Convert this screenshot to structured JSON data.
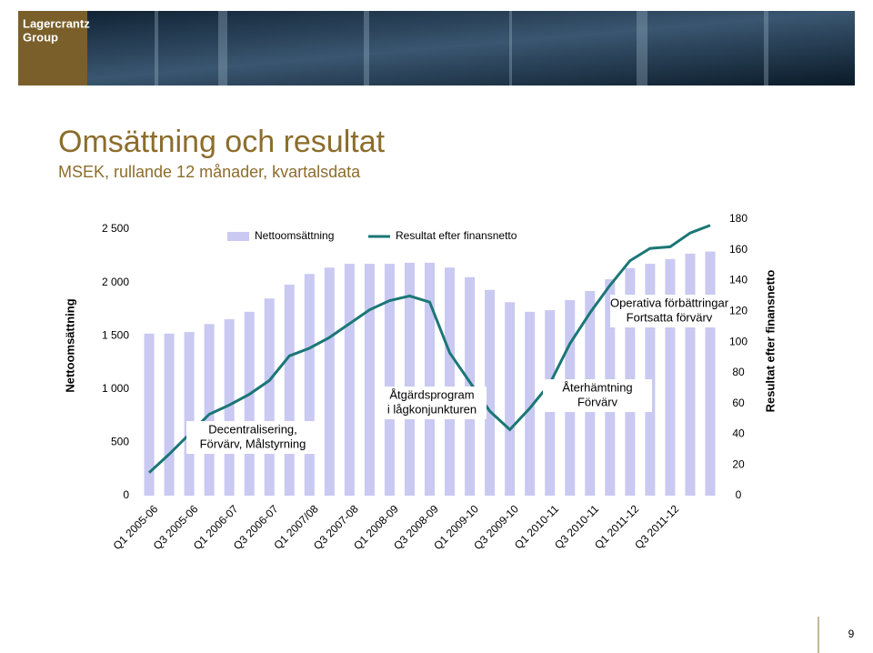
{
  "header": {
    "logo": [
      "Lagercrantz",
      "Group"
    ]
  },
  "page_number": "9",
  "chart_data": {
    "type": "bar-line",
    "title": "Omsättning och resultat",
    "subtitle": "MSEK, rullande 12 månader, kvartalsdata",
    "y_label": "Nettoomsättning",
    "y2_label": "Resultat efter finansnetto",
    "categories": [
      "Q1 2005-06",
      null,
      "Q3 2005-06",
      null,
      "Q1 2006-07",
      null,
      "Q3 2006-07",
      null,
      "Q1 2007/08",
      null,
      "Q3 2007-08",
      null,
      "Q1 2008-09",
      null,
      "Q3 2008-09",
      null,
      "Q1 2009-10",
      null,
      "Q3 2009-10",
      null,
      "Q1 2010-11",
      null,
      "Q3 2010-11",
      null,
      "Q1 2011-12",
      null,
      "Q3 2011-12",
      null,
      null
    ],
    "series": [
      {
        "name": "Nettoomsättning",
        "type": "bar",
        "color": "#c9c9f2",
        "values": [
          1520,
          1520,
          1535,
          1610,
          1655,
          1725,
          1850,
          1980,
          2080,
          2140,
          2175,
          2175,
          2175,
          2185,
          2185,
          2140,
          2050,
          1930,
          1815,
          1725,
          1740,
          1835,
          1920,
          2030,
          2135,
          2175,
          2220,
          2270,
          2290
        ]
      },
      {
        "name": "Resultat efter finansnetto",
        "type": "line",
        "axis": "y2",
        "color": "#1b7775",
        "values": [
          15,
          27,
          40,
          53,
          59,
          66,
          75,
          91,
          96,
          103,
          112,
          121,
          127,
          130,
          126,
          93,
          74,
          55,
          43,
          57,
          73,
          99,
          119,
          137,
          153,
          161,
          162,
          171,
          176
        ]
      }
    ],
    "ylim": [
      0,
      2500
    ],
    "yticks": [
      0,
      500,
      {
        "value": 1000,
        "label": "1 000"
      },
      {
        "value": 1500,
        "label": "1 500"
      },
      {
        "value": 2000,
        "label": "2 000"
      },
      {
        "value": 2500,
        "label": "2 500"
      }
    ],
    "y2lim": [
      0,
      180
    ],
    "y2ticks": [
      0,
      20,
      40,
      60,
      80,
      100,
      120,
      140,
      160,
      180
    ],
    "annotations": [
      {
        "lines": [
          "Decentralisering,",
          "Förvärv, Målstyrning"
        ]
      },
      {
        "lines": [
          "Åtgärdsprogram",
          "i lågkonjunkturen"
        ]
      },
      {
        "lines": [
          "Återhämtning",
          "Förvärv"
        ]
      },
      {
        "lines": [
          "Operativa förbättringar",
          "Fortsatta förvärv"
        ]
      }
    ]
  }
}
